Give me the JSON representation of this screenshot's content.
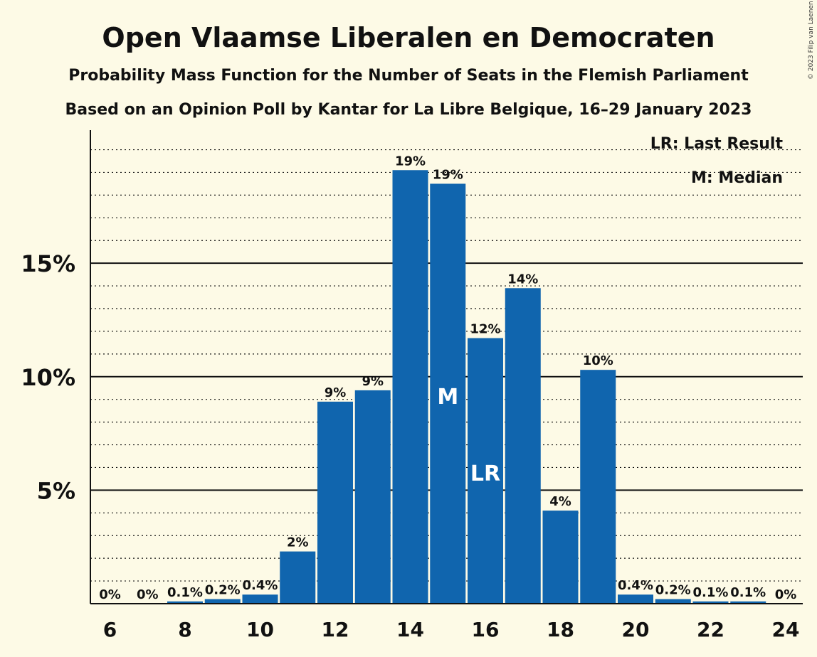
{
  "chart_data": {
    "type": "bar",
    "title": "Open Vlaamse Liberalen en Democraten",
    "subtitle1": "Probability Mass Function for the Number of Seats in the Flemish Parliament",
    "subtitle2": "Based on an Opinion Poll by Kantar for La Libre Belgique, 16–29 January 2023",
    "copyright": "© 2023 Filip van Laenen",
    "legend": {
      "lr": "LR: Last Result",
      "m": "M: Median",
      "placement": "top-right"
    },
    "categories": [
      6,
      7,
      8,
      9,
      10,
      11,
      12,
      13,
      14,
      15,
      16,
      17,
      18,
      19,
      20,
      21,
      22,
      23,
      24
    ],
    "values": [
      0,
      0,
      0.1,
      0.2,
      0.4,
      2.3,
      8.9,
      9.4,
      19.1,
      18.5,
      11.7,
      13.9,
      4.1,
      10.3,
      0.4,
      0.2,
      0.1,
      0.1,
      0
    ],
    "labels": [
      "0%",
      "0%",
      "0.1%",
      "0.2%",
      "0.4%",
      "2%",
      "9%",
      "9%",
      "19%",
      "19%",
      "12%",
      "14%",
      "4%",
      "10%",
      "0.4%",
      "0.2%",
      "0.1%",
      "0.1%",
      "0%"
    ],
    "median_seat": 15,
    "last_result_seat": 16,
    "median_marker": "M",
    "last_result_marker": "LR",
    "x_ticks": [
      6,
      8,
      10,
      12,
      14,
      16,
      18,
      20,
      22,
      24
    ],
    "y_ticks": [
      {
        "value": 5,
        "label": "5%"
      },
      {
        "value": 10,
        "label": "10%"
      },
      {
        "value": 15,
        "label": "15%"
      }
    ],
    "ylim": [
      0,
      20.8
    ],
    "minor_grid_step": 1,
    "grid": true,
    "bar_color": "#1065ae",
    "background_color": "#fdfae6"
  }
}
